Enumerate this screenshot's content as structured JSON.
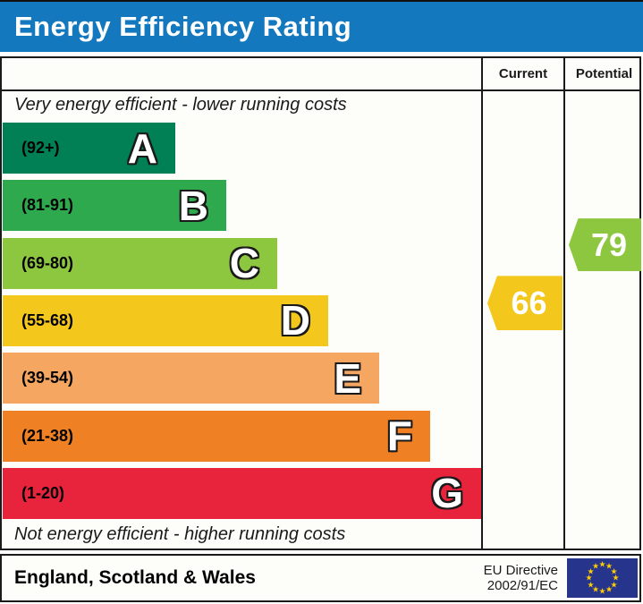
{
  "title": "Energy Efficiency Rating",
  "columns": {
    "current": "Current",
    "potential": "Potential"
  },
  "top_note": "Very energy efficient - lower running costs",
  "bottom_note": "Not energy efficient - higher running costs",
  "bands": [
    {
      "letter": "A",
      "range": "(92+)",
      "color": "#008054"
    },
    {
      "letter": "B",
      "range": "(81-91)",
      "color": "#2ea94d"
    },
    {
      "letter": "C",
      "range": "(69-80)",
      "color": "#8dc63f"
    },
    {
      "letter": "D",
      "range": "(55-68)",
      "color": "#f3c71b"
    },
    {
      "letter": "E",
      "range": "(39-54)",
      "color": "#f5a661"
    },
    {
      "letter": "F",
      "range": "(21-38)",
      "color": "#ef8023"
    },
    {
      "letter": "G",
      "range": "(1-20)",
      "color": "#e8243d"
    }
  ],
  "current": {
    "value": "66",
    "band": "D",
    "color": "#f3c71b"
  },
  "potential": {
    "value": "79",
    "band": "C",
    "color": "#8dc63f"
  },
  "footer": {
    "region": "England, Scotland & Wales",
    "directive_line1": "EU Directive",
    "directive_line2": "2002/91/EC"
  },
  "colors": {
    "header_bg": "#1478be",
    "header_text": "#ffffff",
    "border": "#1a1a1a",
    "eu_flag_bg": "#26348c",
    "eu_star": "#ffcc00"
  },
  "chart_data": {
    "type": "bar",
    "title": "Energy Efficiency Rating",
    "categories": [
      "A",
      "B",
      "C",
      "D",
      "E",
      "F",
      "G"
    ],
    "band_ranges": [
      "92+",
      "81-91",
      "69-80",
      "55-68",
      "39-54",
      "21-38",
      "1-20"
    ],
    "band_colors": [
      "#008054",
      "#2ea94d",
      "#8dc63f",
      "#f3c71b",
      "#f5a661",
      "#ef8023",
      "#e8243d"
    ],
    "current_value": 66,
    "current_band": "D",
    "potential_value": 79,
    "potential_band": "C",
    "value_scale": [
      1,
      100
    ],
    "top_axis_note": "Very energy efficient - lower running costs",
    "bottom_axis_note": "Not energy efficient - higher running costs",
    "region": "England, Scotland & Wales",
    "directive": "EU Directive 2002/91/EC"
  }
}
